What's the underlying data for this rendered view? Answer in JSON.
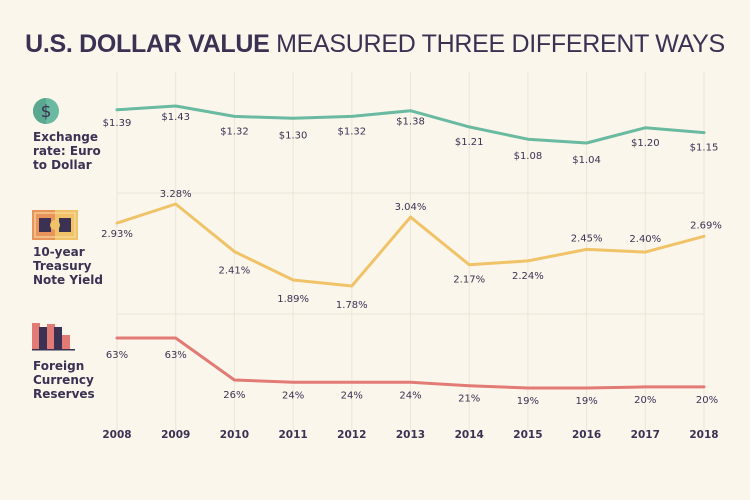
{
  "title": {
    "bold": "U.S. DOLLAR VALUE",
    "light": "MEASURED THREE DIFFERENT WAYS"
  },
  "colors": {
    "exchange": "#6ab9a1",
    "treasury": "#f0c368",
    "reserves": "#e27b75",
    "text": "#3b3152",
    "grid": "#ece6d6",
    "background": "#faf6ec"
  },
  "panels": [
    {
      "label_lines": [
        "Exchange",
        "rate: Euro",
        "to Dollar"
      ],
      "icon": "dollar-coin-icon"
    },
    {
      "label_lines": [
        "10-year",
        "Treasury",
        "Note Yield"
      ],
      "icon": "treasury-note-icon"
    },
    {
      "label_lines": [
        "Foreign",
        "Currency",
        "Reserves"
      ],
      "icon": "bar-chart-icon"
    }
  ],
  "chart_data": {
    "type": "line",
    "title": "U.S. DOLLAR VALUE MEASURED THREE DIFFERENT WAYS",
    "x": [
      "2008",
      "2009",
      "2010",
      "2011",
      "2012",
      "2013",
      "2014",
      "2015",
      "2016",
      "2017",
      "2018"
    ],
    "grid": true,
    "series": [
      {
        "name": "Exchange rate: Euro to Dollar",
        "values": [
          1.39,
          1.43,
          1.32,
          1.3,
          1.32,
          1.38,
          1.21,
          1.08,
          1.04,
          1.2,
          1.15
        ],
        "labels": [
          "$1.39",
          "$1.43",
          "$1.32",
          "$1.30",
          "$1.32",
          "$1.38",
          "$1.21",
          "$1.08",
          "$1.04",
          "$1.20",
          "$1.15"
        ],
        "ylim": [
          1.04,
          1.43
        ]
      },
      {
        "name": "10-year Treasury Note Yield",
        "values": [
          2.93,
          3.28,
          2.41,
          1.89,
          1.78,
          3.04,
          2.17,
          2.24,
          2.45,
          2.4,
          2.69
        ],
        "labels": [
          "2.93%",
          "3.28%",
          "2.41%",
          "1.89%",
          "1.78%",
          "3.04%",
          "2.17%",
          "2.24%",
          "2.45%",
          "2.40%",
          "2.69%"
        ],
        "ylim": [
          1.78,
          3.28
        ]
      },
      {
        "name": "Foreign Currency Reserves",
        "values": [
          63,
          63,
          26,
          24,
          24,
          24,
          21,
          19,
          19,
          20,
          20
        ],
        "labels": [
          "63%",
          "63%",
          "26%",
          "24%",
          "24%",
          "24%",
          "21%",
          "19%",
          "19%",
          "20%",
          "20%"
        ],
        "ylim": [
          19,
          63
        ]
      }
    ]
  }
}
